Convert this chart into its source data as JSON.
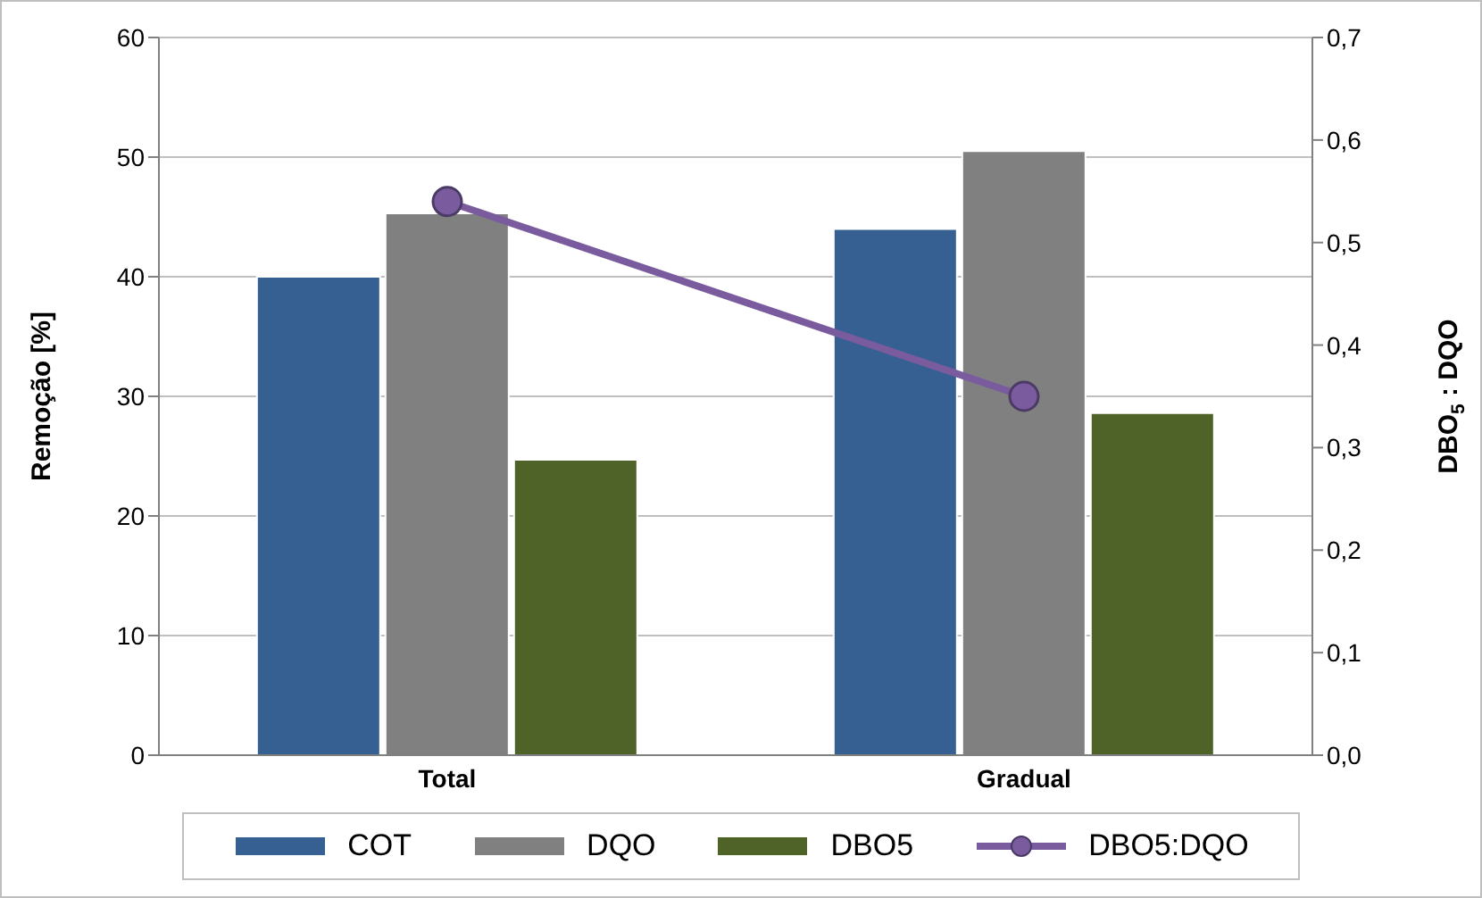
{
  "chart_data": {
    "type": "bar",
    "categories": [
      "Total",
      "Gradual"
    ],
    "ylabel": "Remoção [%]",
    "y2label": "DBO$_{5}$ : DQO",
    "ylim": [
      0,
      60
    ],
    "yticks": [
      0,
      10,
      20,
      30,
      40,
      50,
      60
    ],
    "y2lim": [
      0,
      0.7
    ],
    "y2ticks": [
      {
        "value": 0,
        "label": "0,0"
      },
      {
        "value": 0.1,
        "label": "0,1"
      },
      {
        "value": 0.2,
        "label": "0,2"
      },
      {
        "value": 0.3,
        "label": "0,3"
      },
      {
        "value": 0.4,
        "label": "0,4"
      },
      {
        "value": 0.5,
        "label": "0,5"
      },
      {
        "value": 0.6,
        "label": "0,6"
      },
      {
        "value": 0.7,
        "label": "0,7"
      }
    ],
    "grid": "y",
    "legend": "bottom",
    "marker": "circle",
    "series": [
      {
        "name": "COT",
        "color": "#366092",
        "values": [
          40.0,
          44.0
        ]
      },
      {
        "name": "DQO",
        "color": "#808080",
        "values": [
          45.3,
          50.5
        ]
      },
      {
        "name": "DBO5",
        "color": "#4f6228",
        "values": [
          24.7,
          28.6
        ]
      },
      {
        "name": "DBO5:DQO",
        "type": "line",
        "axis": "y2",
        "color": "#7a5c9e",
        "values": [
          0.54,
          0.35
        ]
      }
    ]
  }
}
